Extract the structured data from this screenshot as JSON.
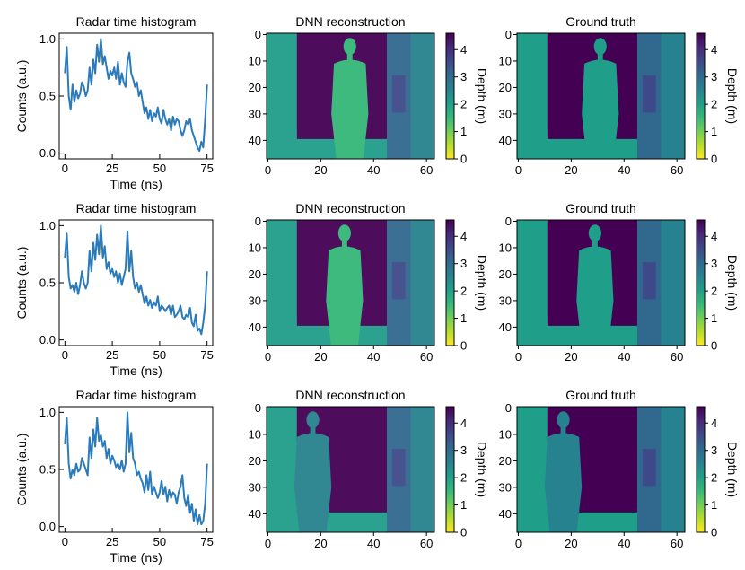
{
  "colors": {
    "line": "#2b7bba",
    "viridis": [
      "#fde725",
      "#b5de2b",
      "#6ece58",
      "#35b779",
      "#1f9e89",
      "#26828e",
      "#31688e",
      "#3e4989",
      "#482878",
      "#440154"
    ]
  },
  "chart_data": [
    {
      "row": 1,
      "histogram": {
        "type": "line",
        "title": "Radar time histogram",
        "xlabel": "Time (ns)",
        "ylabel": "Counts (a.u.)",
        "xlim": [
          -3,
          78
        ],
        "ylim": [
          -0.05,
          1.05
        ],
        "xticks": [
          0,
          25,
          50,
          75
        ],
        "xtick_labels": [
          "0",
          "25",
          "50",
          "75"
        ],
        "yticks": [
          0.0,
          0.5,
          1.0
        ],
        "ytick_labels": [
          "0.0",
          "0.5",
          "1.0"
        ],
        "x": [
          0,
          1,
          2,
          3,
          4,
          5,
          6,
          7,
          8,
          9,
          10,
          11,
          12,
          13,
          14,
          15,
          16,
          17,
          18,
          19,
          20,
          21,
          22,
          23,
          24,
          25,
          26,
          27,
          28,
          29,
          30,
          31,
          32,
          33,
          34,
          35,
          36,
          37,
          38,
          39,
          40,
          41,
          42,
          43,
          44,
          45,
          46,
          47,
          48,
          49,
          50,
          51,
          52,
          53,
          54,
          55,
          56,
          57,
          58,
          59,
          60,
          61,
          62,
          63,
          64,
          65,
          66,
          67,
          68,
          69,
          70,
          71,
          72,
          73,
          74,
          75
        ],
        "y": [
          0.7,
          0.93,
          0.5,
          0.38,
          0.6,
          0.45,
          0.55,
          0.48,
          0.52,
          0.62,
          0.58,
          0.5,
          0.55,
          0.75,
          0.6,
          0.82,
          0.7,
          0.95,
          0.8,
          1.0,
          0.78,
          0.85,
          0.75,
          0.65,
          0.72,
          0.68,
          0.75,
          0.65,
          0.8,
          0.6,
          0.7,
          0.62,
          0.58,
          0.8,
          0.88,
          0.7,
          0.65,
          0.58,
          0.62,
          0.5,
          0.55,
          0.45,
          0.35,
          0.4,
          0.3,
          0.38,
          0.28,
          0.35,
          0.32,
          0.4,
          0.3,
          0.26,
          0.38,
          0.3,
          0.25,
          0.3,
          0.2,
          0.32,
          0.25,
          0.3,
          0.28,
          0.2,
          0.15,
          0.2,
          0.28,
          0.25,
          0.3,
          0.2,
          0.15,
          0.1,
          0.05,
          0.02,
          0.1,
          0.05,
          0.3,
          0.6
        ]
      },
      "reconstruction": {
        "type": "heatmap",
        "title": "DNN reconstruction",
        "xticks": [
          "0",
          "20",
          "40",
          "60"
        ],
        "yticks": [
          "0",
          "10",
          "20",
          "30",
          "40"
        ],
        "figure_depth_m": 1.7
      },
      "ground_truth": {
        "type": "heatmap",
        "title": "Ground truth",
        "xticks": [
          "0",
          "20",
          "40",
          "60"
        ],
        "yticks": [
          "0",
          "10",
          "20",
          "30",
          "40"
        ],
        "figure_depth_m": 1.8
      },
      "colorbar": {
        "label": "Depth (m)",
        "ticks": [
          "0",
          "1",
          "2",
          "3",
          "4"
        ],
        "vmin": 0,
        "vmax": 4.6
      }
    },
    {
      "row": 2,
      "histogram": {
        "type": "line",
        "title": "Radar time histogram",
        "xlabel": "Time (ns)",
        "ylabel": "Counts (a.u.)",
        "xlim": [
          -3,
          78
        ],
        "ylim": [
          -0.05,
          1.05
        ],
        "xticks": [
          0,
          25,
          50,
          75
        ],
        "xtick_labels": [
          "0",
          "25",
          "50",
          "75"
        ],
        "yticks": [
          0.0,
          0.5,
          1.0
        ],
        "ytick_labels": [
          "0.0",
          "0.5",
          "1.0"
        ],
        "x": [
          0,
          1,
          2,
          3,
          4,
          5,
          6,
          7,
          8,
          9,
          10,
          11,
          12,
          13,
          14,
          15,
          16,
          17,
          18,
          19,
          20,
          21,
          22,
          23,
          24,
          25,
          26,
          27,
          28,
          29,
          30,
          31,
          32,
          33,
          34,
          35,
          36,
          37,
          38,
          39,
          40,
          41,
          42,
          43,
          44,
          45,
          46,
          47,
          48,
          49,
          50,
          51,
          52,
          53,
          54,
          55,
          56,
          57,
          58,
          59,
          60,
          61,
          62,
          63,
          64,
          65,
          66,
          67,
          68,
          69,
          70,
          71,
          72,
          73,
          74,
          75
        ],
        "y": [
          0.72,
          0.93,
          0.55,
          0.45,
          0.48,
          0.42,
          0.5,
          0.4,
          0.48,
          0.6,
          0.5,
          0.45,
          0.5,
          0.78,
          0.6,
          0.85,
          0.7,
          0.92,
          0.75,
          1.0,
          0.72,
          0.82,
          0.62,
          0.68,
          0.58,
          0.62,
          0.55,
          0.6,
          0.5,
          0.58,
          0.48,
          0.55,
          0.62,
          0.95,
          0.6,
          0.78,
          0.55,
          0.45,
          0.5,
          0.42,
          0.48,
          0.4,
          0.32,
          0.38,
          0.3,
          0.35,
          0.28,
          0.33,
          0.3,
          0.38,
          0.25,
          0.3,
          0.28,
          0.25,
          0.28,
          0.3,
          0.22,
          0.3,
          0.2,
          0.22,
          0.25,
          0.3,
          0.2,
          0.18,
          0.22,
          0.2,
          0.28,
          0.15,
          0.12,
          0.22,
          0.08,
          0.1,
          0.05,
          0.15,
          0.3,
          0.6
        ]
      },
      "reconstruction": {
        "type": "heatmap",
        "title": "DNN reconstruction",
        "xticks": [
          "0",
          "20",
          "40",
          "60"
        ],
        "yticks": [
          "0",
          "10",
          "20",
          "30",
          "40"
        ],
        "figure_depth_m": 1.3
      },
      "ground_truth": {
        "type": "heatmap",
        "title": "Ground truth",
        "xticks": [
          "0",
          "20",
          "40",
          "60"
        ],
        "yticks": [
          "0",
          "10",
          "20",
          "30",
          "40"
        ],
        "figure_depth_m": 1.8
      },
      "colorbar": {
        "label": "Depth (m)",
        "ticks": [
          "0",
          "1",
          "2",
          "3",
          "4"
        ],
        "vmin": 0,
        "vmax": 4.6
      }
    },
    {
      "row": 3,
      "histogram": {
        "type": "line",
        "title": "Radar time histogram",
        "xlabel": "Time (ns)",
        "ylabel": "Counts (a.u.)",
        "xlim": [
          -3,
          78
        ],
        "ylim": [
          -0.05,
          1.05
        ],
        "xticks": [
          0,
          25,
          50,
          75
        ],
        "xtick_labels": [
          "0",
          "25",
          "50",
          "75"
        ],
        "yticks": [
          0.0,
          0.5,
          1.0
        ],
        "ytick_labels": [
          "0.0",
          "0.5",
          "1.0"
        ],
        "x": [
          0,
          1,
          2,
          3,
          4,
          5,
          6,
          7,
          8,
          9,
          10,
          11,
          12,
          13,
          14,
          15,
          16,
          17,
          18,
          19,
          20,
          21,
          22,
          23,
          24,
          25,
          26,
          27,
          28,
          29,
          30,
          31,
          32,
          33,
          34,
          35,
          36,
          37,
          38,
          39,
          40,
          41,
          42,
          43,
          44,
          45,
          46,
          47,
          48,
          49,
          50,
          51,
          52,
          53,
          54,
          55,
          56,
          57,
          58,
          59,
          60,
          61,
          62,
          63,
          64,
          65,
          66,
          67,
          68,
          69,
          70,
          71,
          72,
          73,
          74,
          75
        ],
        "y": [
          0.72,
          0.95,
          0.55,
          0.42,
          0.5,
          0.45,
          0.55,
          0.48,
          0.5,
          0.6,
          0.55,
          0.5,
          0.45,
          0.78,
          0.6,
          0.85,
          0.7,
          0.95,
          0.75,
          0.8,
          0.7,
          0.75,
          0.6,
          0.68,
          0.55,
          0.62,
          0.58,
          0.52,
          0.55,
          0.5,
          0.58,
          0.48,
          0.55,
          1.0,
          0.65,
          0.82,
          0.6,
          0.55,
          0.45,
          0.48,
          0.42,
          0.38,
          0.3,
          0.45,
          0.32,
          0.48,
          0.28,
          0.35,
          0.3,
          0.25,
          0.3,
          0.4,
          0.28,
          0.35,
          0.22,
          0.32,
          0.25,
          0.3,
          0.28,
          0.2,
          0.3,
          0.35,
          0.45,
          0.25,
          0.18,
          0.28,
          0.12,
          0.2,
          0.05,
          0.15,
          0.02,
          0.1,
          0.02,
          0.05,
          0.2,
          0.55
        ]
      },
      "reconstruction": {
        "type": "heatmap",
        "title": "DNN reconstruction",
        "xticks": [
          "0",
          "20",
          "40",
          "60"
        ],
        "yticks": [
          "0",
          "10",
          "20",
          "30",
          "40"
        ],
        "figure_depth_m": 2.5
      },
      "ground_truth": {
        "type": "heatmap",
        "title": "Ground truth",
        "xticks": [
          "0",
          "20",
          "40",
          "60"
        ],
        "yticks": [
          "0",
          "10",
          "20",
          "30",
          "40"
        ],
        "figure_depth_m": 2.7
      },
      "colorbar": {
        "label": "Depth (m)",
        "ticks": [
          "0",
          "1",
          "2",
          "3",
          "4"
        ],
        "vmin": 0,
        "vmax": 4.6
      }
    }
  ]
}
